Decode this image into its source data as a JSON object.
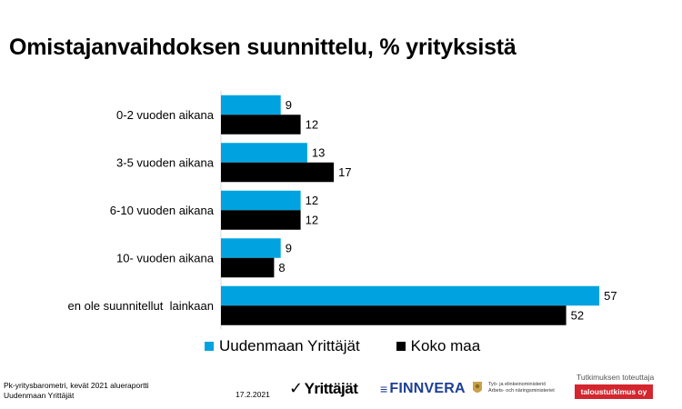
{
  "title": "Omistajanvaihdoksen suunnittelu, % yrityksistä",
  "chart_data": {
    "type": "bar",
    "orientation": "horizontal",
    "categories": [
      "0-2 vuoden aikana",
      "3-5 vuoden aikana",
      "6-10 vuoden aikana",
      "10- vuoden aikana",
      "en ole suunnitellut  lainkaan"
    ],
    "series": [
      {
        "name": "Uudenmaan Yrittäjät",
        "values": [
          9,
          13,
          12,
          9,
          57
        ],
        "color": "#00a3e0"
      },
      {
        "name": "Koko maa",
        "values": [
          12,
          17,
          12,
          8,
          52
        ],
        "color": "#000000"
      }
    ],
    "xlim": [
      0,
      60
    ],
    "grid": false,
    "legend_position": "bottom"
  },
  "legend": [
    {
      "label": "Uudenmaan Yrittäjät",
      "color": "#00a3e0"
    },
    {
      "label": "Koko maa",
      "color": "#000000"
    }
  ],
  "footer": {
    "source_line1": "Pk-yritysbarometri, kevät 2021 alueraportti",
    "source_line2": "Uudenmaan Yrittäjät",
    "date": "17.2.2021",
    "logo_yrittajat": "Yrittäjät",
    "logo_finnvera": "FINNVERA",
    "tem_line1": "Työ- ja elinkeinoministeriö",
    "tem_line2": "Arbets- och näringsministeriet",
    "research_label": "Tutkimuksen toteuttaja",
    "research_logo": "taloustutkimus oy"
  }
}
